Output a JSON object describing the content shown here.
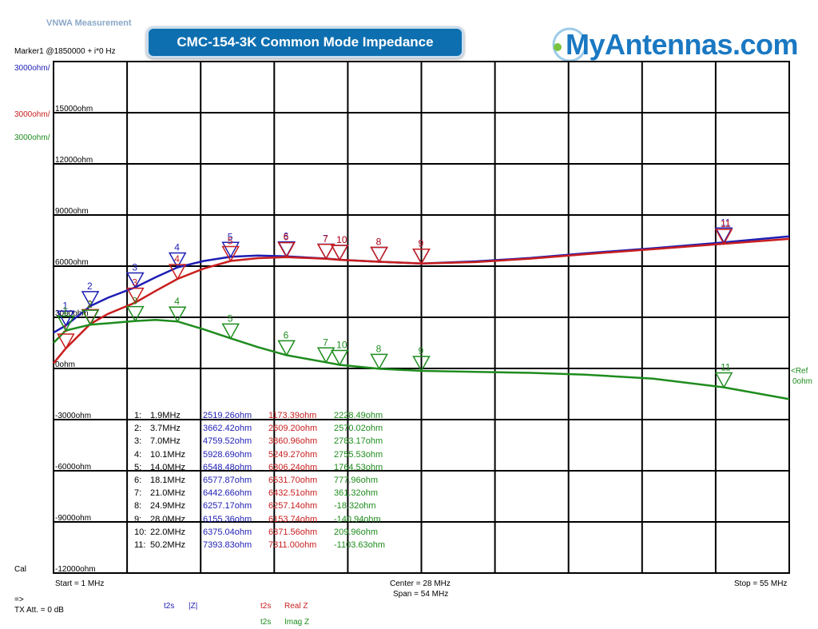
{
  "app_title": "VNWA Measurement",
  "banner_title": "CMC-154-3K Common Mode Impedance",
  "brand": "MyAntennas.com",
  "marker_info": "Marker1 @1850000 + i*0 Hz",
  "scale_labels": {
    "blue": "3000ohm/",
    "red": "3000ohm/",
    "green": "3000ohm/"
  },
  "cal_label": "Cal",
  "arrow_label": "=>",
  "tx_att": "TX Att. = 0 dB",
  "ref_label": "<Ref",
  "ref_value": "0ohm",
  "start_label": "Start = 1 MHz",
  "center_label": "Center = 28 MHz",
  "span_label": "Span = 54 MHz",
  "stop_label": "Stop = 55 MHz",
  "trace_legend": [
    {
      "trace": "t2s",
      "label": "|Z|",
      "color": "#1e1eb4"
    },
    {
      "trace": "t2s",
      "label": "Real Z",
      "color": "#c81e1e"
    },
    {
      "trace": "t2s",
      "label": "Imag Z",
      "color": "#1e8c1e"
    }
  ],
  "marker_table": [
    {
      "id": "1:",
      "freq": "1.9MHz",
      "z": "2519.26ohm",
      "re": "1173.39ohm",
      "im": "2228.49ohm"
    },
    {
      "id": "2:",
      "freq": "3.7MHz",
      "z": "3662.42ohm",
      "re": "2609.20ohm",
      "im": "2570.02ohm"
    },
    {
      "id": "3:",
      "freq": "7.0MHz",
      "z": "4759.52ohm",
      "re": "3860.96ohm",
      "im": "2783.17ohm"
    },
    {
      "id": "4:",
      "freq": "10.1MHz",
      "z": "5928.69ohm",
      "re": "5249.27ohm",
      "im": "2755.53ohm"
    },
    {
      "id": "5:",
      "freq": "14.0MHz",
      "z": "6548.48ohm",
      "re": "6306.24ohm",
      "im": "1764.53ohm"
    },
    {
      "id": "6:",
      "freq": "18.1MHz",
      "z": "6577.87ohm",
      "re": "6531.70ohm",
      "im": "777.96ohm"
    },
    {
      "id": "7:",
      "freq": "21.0MHz",
      "z": "6442.66ohm",
      "re": "6432.51ohm",
      "im": "361.32ohm"
    },
    {
      "id": "8:",
      "freq": "24.9MHz",
      "z": "6257.17ohm",
      "re": "6257.14ohm",
      "im": "-18.32ohm"
    },
    {
      "id": "9:",
      "freq": "28.0MHz",
      "z": "6155.36ohm",
      "re": "6153.74ohm",
      "im": "-140.94ohm"
    },
    {
      "id": "10:",
      "freq": "22.0MHz",
      "z": "6375.04ohm",
      "re": "6371.56ohm",
      "im": "209.96ohm"
    },
    {
      "id": "11:",
      "freq": "50.2MHz",
      "z": "7393.83ohm",
      "re": "7311.00ohm",
      "im": "-1103.63ohm"
    }
  ],
  "chart_data": {
    "type": "line",
    "xlabel": "",
    "ylabel": "",
    "xlim": [
      1,
      55
    ],
    "ylim": [
      -12000,
      18000
    ],
    "y_tick_labels": [
      "15000ohm",
      "12000ohm",
      "9000ohm",
      "6000ohm",
      "3000ohm",
      "0ohm",
      "-3000ohm",
      "-6000ohm",
      "-9000ohm",
      "-12000ohm"
    ],
    "y_tick_values": [
      15000,
      12000,
      9000,
      6000,
      3000,
      0,
      -3000,
      -6000,
      -9000,
      -12000
    ],
    "grid": true,
    "series": [
      {
        "name": "|Z|",
        "color": "#1e1eb4",
        "x": [
          1,
          1.9,
          3.7,
          5,
          7,
          8.5,
          10.1,
          12,
          14,
          16,
          18.1,
          21,
          22,
          24.9,
          28,
          32,
          36,
          40,
          45,
          50.2,
          55
        ],
        "y": [
          2100,
          2519,
          3662,
          4150,
          4760,
          5350,
          5929,
          6300,
          6548,
          6620,
          6578,
          6443,
          6375,
          6257,
          6155,
          6280,
          6480,
          6750,
          7050,
          7394,
          7750
        ]
      },
      {
        "name": "Real Z",
        "color": "#c81e1e",
        "x": [
          1,
          1.9,
          3.7,
          5,
          7,
          8.5,
          10.1,
          12,
          14,
          16,
          18.1,
          21,
          22,
          24.9,
          28,
          32,
          36,
          40,
          45,
          50.2,
          55
        ],
        "y": [
          300,
          1173,
          2609,
          3200,
          3861,
          4550,
          5249,
          5850,
          6306,
          6470,
          6532,
          6433,
          6372,
          6257,
          6154,
          6240,
          6440,
          6700,
          7000,
          7311,
          7600
        ]
      },
      {
        "name": "Imag Z",
        "color": "#1e8c1e",
        "x": [
          1,
          1.9,
          3.7,
          5,
          7,
          8.5,
          10.1,
          12,
          14,
          16,
          18.1,
          21,
          22,
          24.9,
          28,
          32,
          36,
          40,
          45,
          50.2,
          55
        ],
        "y": [
          1500,
          2228,
          2570,
          2650,
          2783,
          2850,
          2756,
          2300,
          1765,
          1250,
          778,
          361,
          210,
          -18,
          -141,
          -200,
          -260,
          -360,
          -600,
          -1104,
          -1800
        ]
      }
    ],
    "markers": [
      {
        "label": "1",
        "x": 1.9
      },
      {
        "label": "2",
        "x": 3.7
      },
      {
        "label": "3",
        "x": 7.0
      },
      {
        "label": "4",
        "x": 10.1
      },
      {
        "label": "5",
        "x": 14.0
      },
      {
        "label": "6",
        "x": 18.1
      },
      {
        "label": "7",
        "x": 21.0
      },
      {
        "label": "8",
        "x": 24.9
      },
      {
        "label": "9",
        "x": 28.0
      },
      {
        "label": "10",
        "x": 22.0
      },
      {
        "label": "11",
        "x": 50.2
      }
    ],
    "legend_placement": "bottom"
  }
}
